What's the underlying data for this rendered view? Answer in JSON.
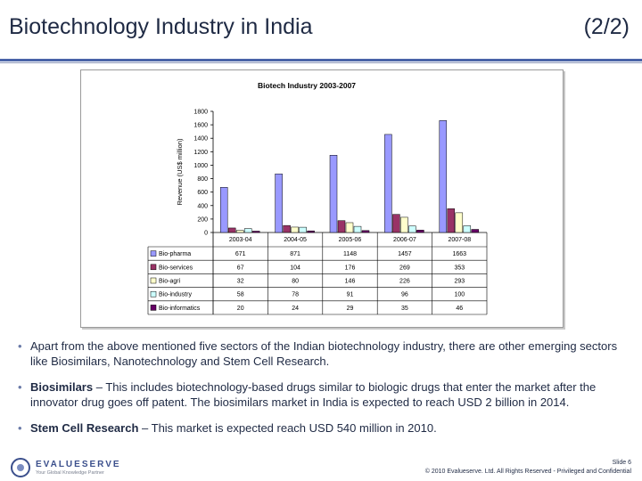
{
  "header": {
    "title": "Biotechnology Industry in India",
    "page_indicator": "(2/2)"
  },
  "chart_data": {
    "type": "bar",
    "title": "Biotech Industry 2003-2007",
    "ylabel": "Revenue (US$ million)",
    "xlabel": "",
    "ylim": [
      0,
      1800
    ],
    "yticks": [
      0,
      200,
      400,
      600,
      800,
      1000,
      1200,
      1400,
      1600,
      1800
    ],
    "categories": [
      "2003-04",
      "2004-05",
      "2005-06",
      "2006-07",
      "2007-08"
    ],
    "series": [
      {
        "name": "Bio-pharma",
        "values": [
          671,
          871,
          1148,
          1457,
          1663
        ],
        "labels": [
          "671",
          "871",
          "1148",
          "1457",
          "1663"
        ],
        "color": "#9999ff"
      },
      {
        "name": "Bio-services",
        "values": [
          67,
          104,
          176,
          269,
          353
        ],
        "labels": [
          "67",
          "104",
          "176",
          "269",
          "353"
        ],
        "color": "#993366"
      },
      {
        "name": "Bio-agri",
        "values": [
          32,
          80,
          146,
          226,
          293
        ],
        "labels": [
          "32",
          "80",
          "146",
          "226",
          "293"
        ],
        "color": "#ffffcc"
      },
      {
        "name": "Bio-industry",
        "values": [
          58,
          78,
          91,
          96,
          100
        ],
        "labels": [
          "58",
          "78",
          "91",
          "96",
          "100"
        ],
        "color": "#ccffff"
      },
      {
        "name": "Bio-informatics",
        "values": [
          20,
          24,
          29,
          35,
          46
        ],
        "labels": [
          "20",
          "24",
          "29",
          "35",
          "46"
        ],
        "color": "#660066"
      }
    ],
    "data_table": true,
    "grid": false
  },
  "bullets": [
    {
      "lead": "",
      "text": "Apart from the above mentioned five sectors of the Indian biotechnology industry, there are other emerging sectors like Biosimilars, Nanotechnology and Stem Cell Research."
    },
    {
      "lead": "Biosimilars",
      "text": " – This includes biotechnology-based drugs similar to biologic drugs that enter the market after the innovator drug goes off patent. The biosimilars market in India is expected to reach USD 2 billion in 2014."
    },
    {
      "lead": "Stem Cell Research",
      "text": " – This market is expected reach USD 540 million in 2010."
    }
  ],
  "logo": {
    "brand": "EVALUESERVE",
    "tagline": "Your Global Knowledge Partner"
  },
  "footer": {
    "slide": "Slide 6",
    "copyright": "© 2010 Evalueserve. Ltd. All Rights Reserved - Privileged and Confidential"
  }
}
